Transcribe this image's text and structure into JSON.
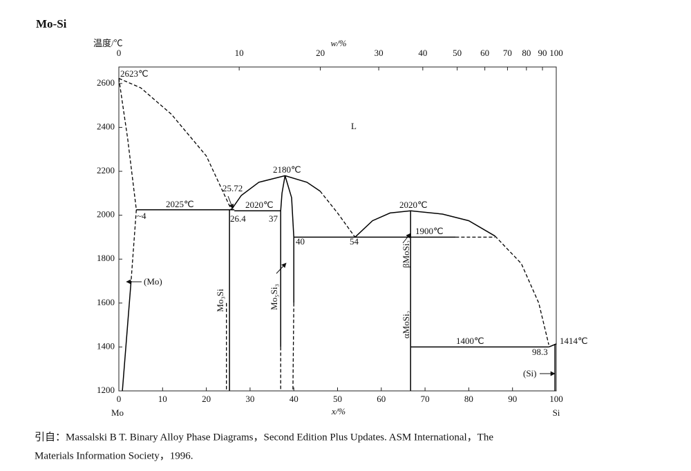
{
  "chart_data": {
    "type": "line",
    "title": "Mo-Si",
    "y_label": "温度/℃",
    "x_label": "x/%",
    "x2_label": "w/%",
    "x_components": [
      "Mo",
      "Si"
    ],
    "xlim": [
      0,
      100
    ],
    "xticks": [
      0,
      10,
      20,
      30,
      40,
      50,
      60,
      70,
      80,
      90,
      100
    ],
    "x2lim": [
      0,
      100
    ],
    "x2ticks": [
      0,
      10,
      20,
      30,
      40,
      50,
      60,
      70,
      80,
      90,
      100
    ],
    "ylim": [
      1200,
      2675
    ],
    "yticks": [
      1200,
      1400,
      1600,
      1800,
      2000,
      2200,
      2400,
      2600
    ],
    "series": [
      {
        "color": "#000000",
        "dash": true,
        "x": [
          0,
          5,
          12,
          20,
          25.72
        ],
        "values": [
          2623,
          2580,
          2460,
          2270,
          2025
        ]
      },
      {
        "color": "#000000",
        "dash": true,
        "x": [
          0,
          2,
          4
        ],
        "values": [
          2623,
          2350,
          2025
        ]
      },
      {
        "color": "#000000",
        "dash": true,
        "x": [
          4,
          2.8
        ],
        "values": [
          2025,
          1700
        ]
      },
      {
        "color": "#000000",
        "dash": false,
        "x": [
          2.8,
          0.8
        ],
        "values": [
          1700,
          1200
        ]
      },
      {
        "color": "#000000",
        "dash": false,
        "x": [
          4,
          26.4
        ],
        "values": [
          2025,
          2025
        ]
      },
      {
        "color": "#000000",
        "dash": false,
        "x": [
          25.3,
          25.3
        ],
        "values": [
          2025,
          1200
        ]
      },
      {
        "color": "#000000",
        "dash": true,
        "x": [
          24.6,
          24.6
        ],
        "values": [
          1600,
          1200
        ]
      },
      {
        "color": "#000000",
        "dash": false,
        "x": [
          25.72,
          28,
          32,
          38
        ],
        "values": [
          2025,
          2090,
          2150,
          2180
        ]
      },
      {
        "color": "#000000",
        "dash": false,
        "x": [
          38,
          43,
          46
        ],
        "values": [
          2180,
          2150,
          2110
        ]
      },
      {
        "color": "#000000",
        "dash": true,
        "x": [
          46,
          50,
          54
        ],
        "values": [
          2110,
          2010,
          1900
        ]
      },
      {
        "color": "#000000",
        "dash": false,
        "x": [
          54,
          58,
          62,
          66.7,
          74,
          80,
          86
        ],
        "values": [
          1900,
          1975,
          2010,
          2020,
          2005,
          1975,
          1905
        ]
      },
      {
        "color": "#000000",
        "dash": true,
        "x": [
          86,
          92,
          96,
          98.3
        ],
        "values": [
          1905,
          1780,
          1600,
          1410
        ]
      },
      {
        "color": "#000000",
        "dash": false,
        "x": [
          38,
          37.3,
          37,
          37
        ],
        "values": [
          2180,
          2100,
          2020,
          1400
        ]
      },
      {
        "color": "#000000",
        "dash": true,
        "x": [
          37,
          37
        ],
        "values": [
          1400,
          1200
        ]
      },
      {
        "color": "#000000",
        "dash": false,
        "x": [
          38,
          39.5,
          40,
          40
        ],
        "values": [
          2180,
          2080,
          1900,
          1600
        ]
      },
      {
        "color": "#000000",
        "dash": true,
        "x": [
          40,
          39.8
        ],
        "values": [
          1600,
          1200
        ]
      },
      {
        "color": "#000000",
        "dash": false,
        "x": [
          26.4,
          37
        ],
        "values": [
          2020,
          2020
        ]
      },
      {
        "color": "#000000",
        "dash": false,
        "x": [
          40,
          77
        ],
        "values": [
          1900,
          1900
        ]
      },
      {
        "color": "#000000",
        "dash": true,
        "x": [
          77,
          86
        ],
        "values": [
          1900,
          1900
        ]
      },
      {
        "color": "#000000",
        "dash": false,
        "x": [
          66.7,
          66.7
        ],
        "values": [
          2020,
          1200
        ]
      },
      {
        "color": "#000000",
        "dash": false,
        "x": [
          66.7,
          98.3
        ],
        "values": [
          1400,
          1400
        ]
      },
      {
        "color": "#000000",
        "dash": false,
        "x": [
          98.3,
          100
        ],
        "values": [
          1400,
          1414
        ]
      },
      {
        "color": "#000000",
        "dash": false,
        "x": [
          99.7,
          99.7
        ],
        "values": [
          1414,
          1200
        ]
      }
    ],
    "annotations": [
      "2623℃",
      "25.72",
      "2025℃",
      "2020℃",
      "~4",
      "26.4",
      "37",
      "2180℃",
      "40",
      "54",
      "2020℃",
      "1900℃",
      "1400℃",
      "98.3",
      "1414℃",
      "L",
      "(Mo)",
      "(Si)",
      "Mo₃Si",
      "Mo₅Si₃",
      "βMoSi₂",
      "αMoSi₂"
    ],
    "source_lines": [
      "引自：Massalski B T. Binary Alloy Phase Diagrams，Second Edition Plus Updates. ASM International，The",
      "Materials Information Society，1996."
    ]
  }
}
